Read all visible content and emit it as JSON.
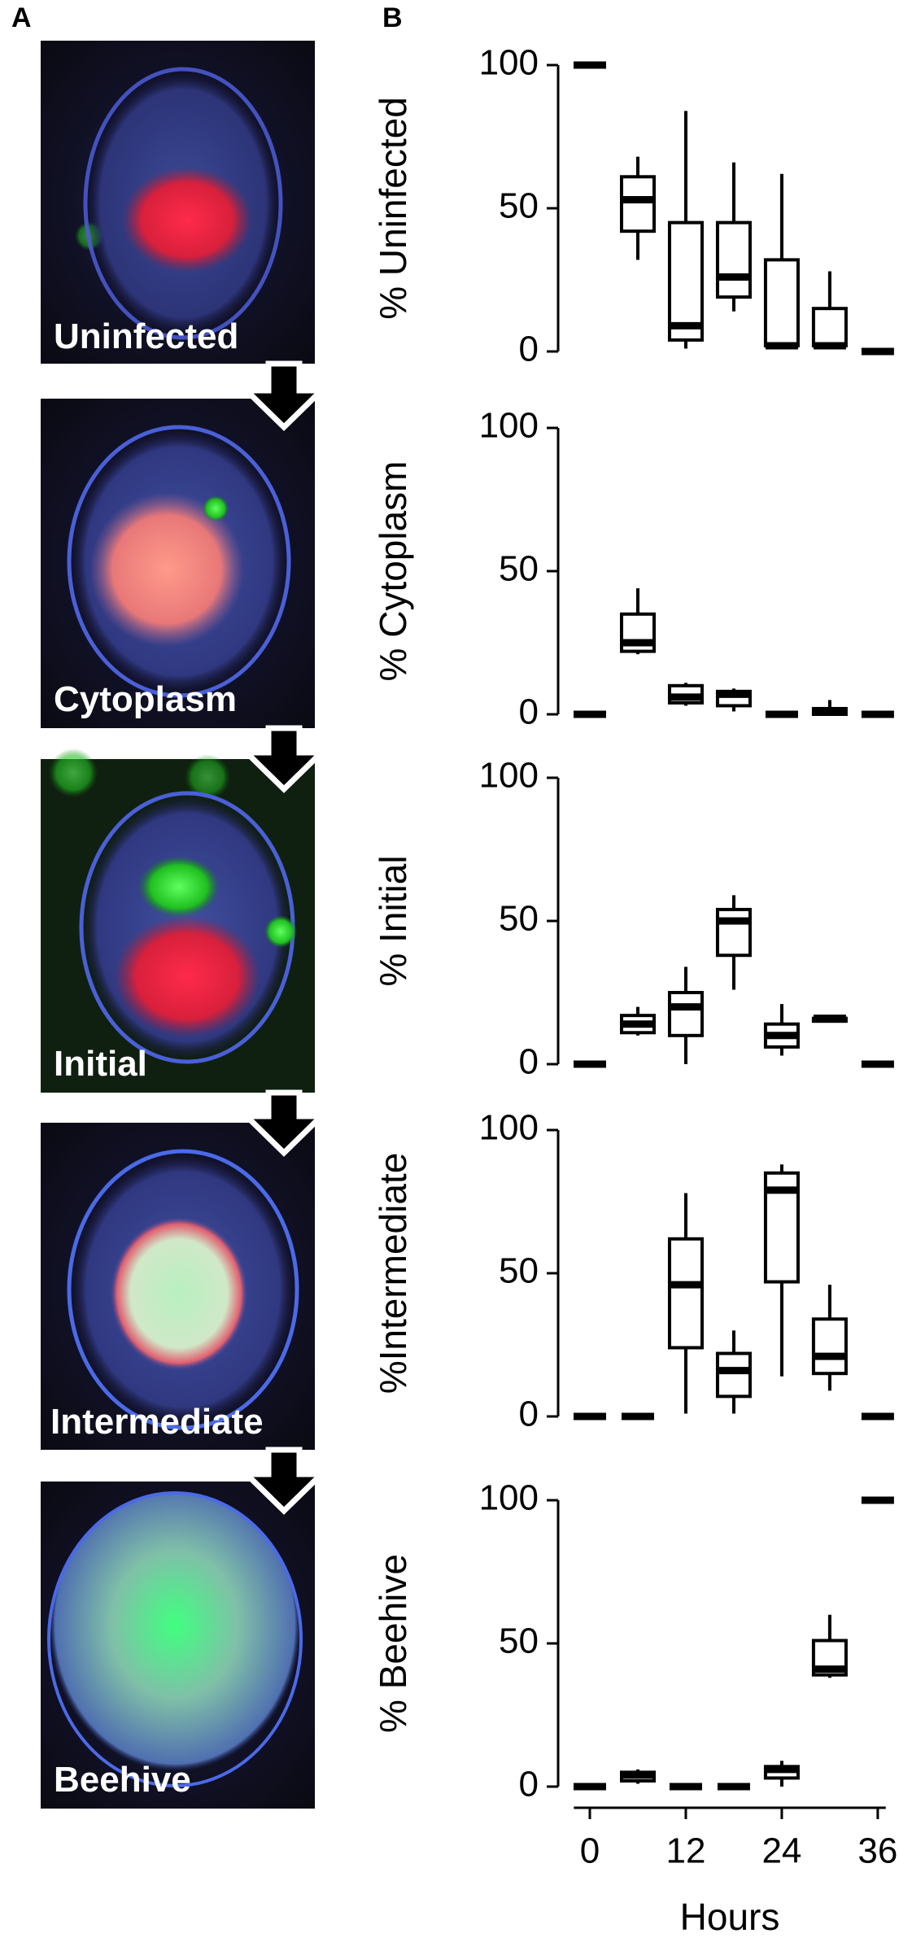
{
  "panel_a": {
    "label": "A",
    "images": [
      {
        "caption": "Uninfected"
      },
      {
        "caption": "Cytoplasm"
      },
      {
        "caption": "Initial"
      },
      {
        "caption": "Intermediate"
      },
      {
        "caption": "Beehive"
      }
    ]
  },
  "panel_b": {
    "label": "B"
  },
  "chart_data": [
    {
      "type": "box",
      "ylabel": "% Uninfected",
      "ylim": [
        0,
        100
      ],
      "yticks": [
        0,
        50,
        100
      ],
      "x": [
        0,
        6,
        12,
        18,
        24,
        30,
        36
      ],
      "boxes": [
        {
          "whislo": 100,
          "q1": 100,
          "med": 100,
          "q3": 100,
          "whishi": 100
        },
        {
          "whislo": 32,
          "q1": 42,
          "med": 53,
          "q3": 61,
          "whishi": 68
        },
        {
          "whislo": 1,
          "q1": 4,
          "med": 9,
          "q3": 45,
          "whishi": 84
        },
        {
          "whislo": 14,
          "q1": 19,
          "med": 26,
          "q3": 45,
          "whishi": 66
        },
        {
          "whislo": 1,
          "q1": 2,
          "med": 2,
          "q3": 32,
          "whishi": 62
        },
        {
          "whislo": 1,
          "q1": 2,
          "med": 2,
          "q3": 15,
          "whishi": 28
        },
        {
          "whislo": 0,
          "q1": 0,
          "med": 0,
          "q3": 0,
          "whishi": 0
        }
      ]
    },
    {
      "type": "box",
      "ylabel": "% Cytoplasm",
      "ylim": [
        0,
        100
      ],
      "yticks": [
        0,
        50,
        100
      ],
      "x": [
        0,
        6,
        12,
        18,
        24,
        30,
        36
      ],
      "boxes": [
        {
          "whislo": 0,
          "q1": 0,
          "med": 0,
          "q3": 0,
          "whishi": 0
        },
        {
          "whislo": 21,
          "q1": 22,
          "med": 25,
          "q3": 35,
          "whishi": 44
        },
        {
          "whislo": 3,
          "q1": 4,
          "med": 6,
          "q3": 10,
          "whishi": 11
        },
        {
          "whislo": 1,
          "q1": 3,
          "med": 7,
          "q3": 8,
          "whishi": 9
        },
        {
          "whislo": 0,
          "q1": 0,
          "med": 0,
          "q3": 0,
          "whishi": 0
        },
        {
          "whislo": 0,
          "q1": 0,
          "med": 1,
          "q3": 2,
          "whishi": 5
        },
        {
          "whislo": 0,
          "q1": 0,
          "med": 0,
          "q3": 0,
          "whishi": 0
        }
      ]
    },
    {
      "type": "box",
      "ylabel": "% Initial",
      "ylim": [
        0,
        100
      ],
      "yticks": [
        0,
        50,
        100
      ],
      "x": [
        0,
        6,
        12,
        18,
        24,
        30,
        36
      ],
      "boxes": [
        {
          "whislo": 0,
          "q1": 0,
          "med": 0,
          "q3": 0,
          "whishi": 0
        },
        {
          "whislo": 10,
          "q1": 11,
          "med": 14,
          "q3": 17,
          "whishi": 20
        },
        {
          "whislo": 0,
          "q1": 10,
          "med": 20,
          "q3": 25,
          "whishi": 34
        },
        {
          "whislo": 26,
          "q1": 38,
          "med": 50,
          "q3": 54,
          "whishi": 59
        },
        {
          "whislo": 3,
          "q1": 6,
          "med": 10,
          "q3": 14,
          "whishi": 21
        },
        {
          "whislo": 15,
          "q1": 15,
          "med": 16,
          "q3": 16,
          "whishi": 17
        },
        {
          "whislo": 0,
          "q1": 0,
          "med": 0,
          "q3": 0,
          "whishi": 0
        }
      ]
    },
    {
      "type": "box",
      "ylabel": "%Intermediate",
      "ylim": [
        0,
        100
      ],
      "yticks": [
        0,
        50,
        100
      ],
      "x": [
        0,
        6,
        12,
        18,
        24,
        30,
        36
      ],
      "boxes": [
        {
          "whislo": 0,
          "q1": 0,
          "med": 0,
          "q3": 0,
          "whishi": 0
        },
        {
          "whislo": 0,
          "q1": 0,
          "med": 0,
          "q3": 0,
          "whishi": 0
        },
        {
          "whislo": 1,
          "q1": 24,
          "med": 46,
          "q3": 62,
          "whishi": 78
        },
        {
          "whislo": 1,
          "q1": 7,
          "med": 16,
          "q3": 22,
          "whishi": 30
        },
        {
          "whislo": 14,
          "q1": 47,
          "med": 79,
          "q3": 85,
          "whishi": 88
        },
        {
          "whislo": 9,
          "q1": 15,
          "med": 21,
          "q3": 34,
          "whishi": 46
        },
        {
          "whislo": 0,
          "q1": 0,
          "med": 0,
          "q3": 0,
          "whishi": 0
        }
      ]
    },
    {
      "type": "box",
      "ylabel": "% Beehive",
      "ylim": [
        0,
        100
      ],
      "yticks": [
        0,
        50,
        100
      ],
      "x": [
        0,
        6,
        12,
        18,
        24,
        30,
        36
      ],
      "xlabel": "Hours",
      "xlim": [
        -2,
        37
      ],
      "xticks": [
        0,
        12,
        24,
        36
      ],
      "boxes": [
        {
          "whislo": 0,
          "q1": 0,
          "med": 0,
          "q3": 0,
          "whishi": 0
        },
        {
          "whislo": 1,
          "q1": 2,
          "med": 4,
          "q3": 5,
          "whishi": 6
        },
        {
          "whislo": 0,
          "q1": 0,
          "med": 0,
          "q3": 0,
          "whishi": 0
        },
        {
          "whislo": 0,
          "q1": 0,
          "med": 0,
          "q3": 0,
          "whishi": 0
        },
        {
          "whislo": 0,
          "q1": 3,
          "med": 6,
          "q3": 7,
          "whishi": 9
        },
        {
          "whislo": 38,
          "q1": 39,
          "med": 41,
          "q3": 51,
          "whishi": 60
        },
        {
          "whislo": 100,
          "q1": 100,
          "med": 100,
          "q3": 100,
          "whishi": 100
        }
      ]
    }
  ]
}
